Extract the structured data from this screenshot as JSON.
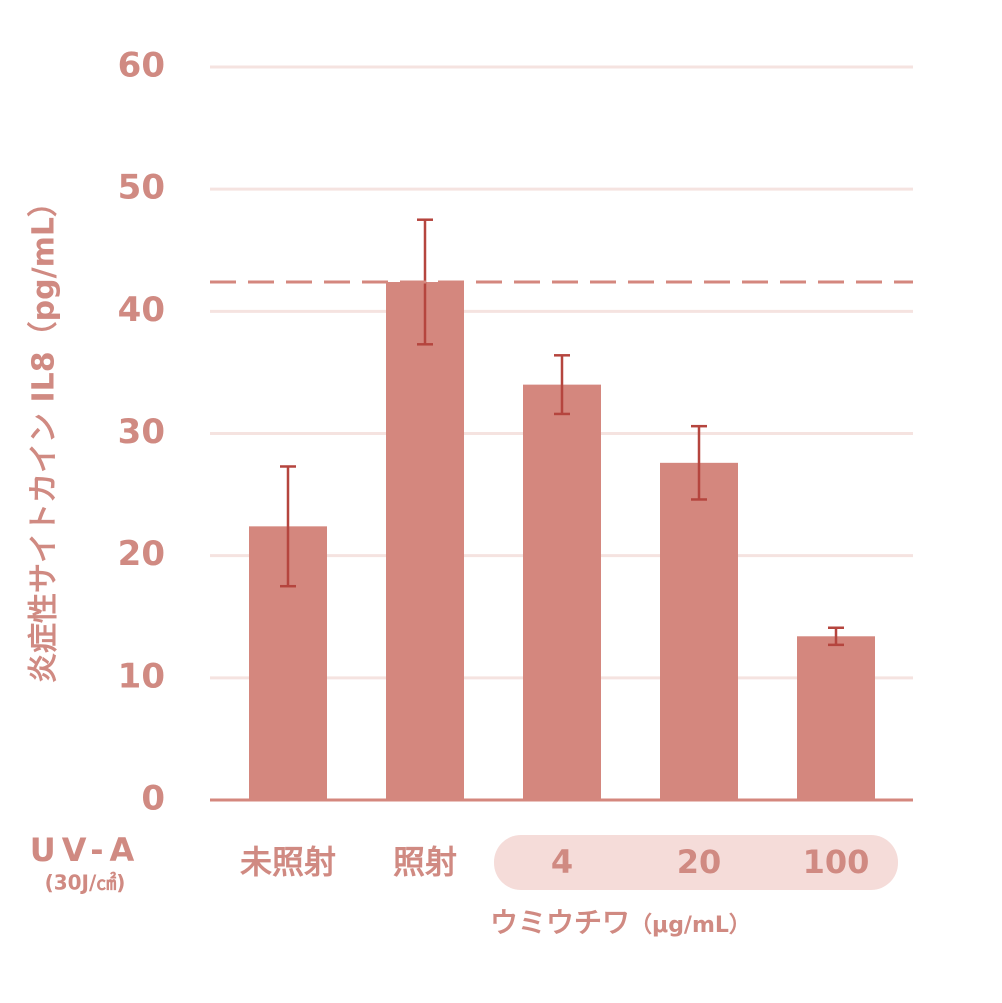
{
  "chart_data": {
    "type": "bar",
    "y_label": "炎症性サイトカイン IL8（pg/mL）",
    "x_axis_title": "UV-A",
    "x_axis_subtitle": "(30J/㎠)",
    "categories": [
      "未照射",
      "照射",
      "4",
      "20",
      "100"
    ],
    "group_label": "ウミウチワ",
    "group_unit": "（μg/mL）",
    "values": [
      22.4,
      42.4,
      34,
      27.6,
      13.4
    ],
    "errors": [
      4.9,
      5.1,
      2.4,
      3.0,
      0.7
    ],
    "reference_line": 42.4,
    "color": "#d4877e",
    "error_color": "#b5453e",
    "ylim": [
      0,
      60
    ],
    "yticks": [
      0,
      10,
      20,
      30,
      40,
      50,
      60
    ],
    "grid": true
  }
}
